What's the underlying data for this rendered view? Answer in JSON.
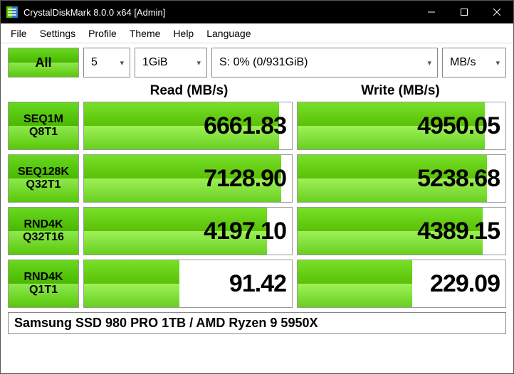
{
  "window": {
    "title": "CrystalDiskMark 8.0.0 x64 [Admin]",
    "icon_color1": "#58c808",
    "icon_color2": "#2878c8"
  },
  "menu": [
    "File",
    "Settings",
    "Profile",
    "Theme",
    "Help",
    "Language"
  ],
  "controls": {
    "all_label": "All",
    "runs": "5",
    "size": "1GiB",
    "drive": "S: 0% (0/931GiB)",
    "unit": "MB/s"
  },
  "headers": {
    "read": "Read (MB/s)",
    "write": "Write (MB/s)"
  },
  "rows": [
    {
      "l1": "SEQ1M",
      "l2": "Q8T1",
      "read": "6661.83",
      "read_pct": 94,
      "write": "4950.05",
      "write_pct": 90
    },
    {
      "l1": "SEQ128K",
      "l2": "Q32T1",
      "read": "7128.90",
      "read_pct": 95,
      "write": "5238.68",
      "write_pct": 91
    },
    {
      "l1": "RND4K",
      "l2": "Q32T16",
      "read": "4197.10",
      "read_pct": 88,
      "write": "4389.15",
      "write_pct": 89
    },
    {
      "l1": "RND4K",
      "l2": "Q1T1",
      "read": "91.42",
      "read_pct": 46,
      "write": "229.09",
      "write_pct": 55
    }
  ],
  "footer": "Samsung SSD 980 PRO 1TB / AMD Ryzen 9 5950X",
  "style": {
    "green_gradient": [
      "#68d820",
      "#4ab800",
      "#8fe850",
      "#58c808"
    ],
    "fill_gradient": [
      "#78e028",
      "#5ac008",
      "#9ff058",
      "#68d020"
    ],
    "background": "#ffffff",
    "titlebar_bg": "#000000",
    "border_color": "#999999",
    "value_fontsize": 34,
    "label_fontsize": 16
  }
}
